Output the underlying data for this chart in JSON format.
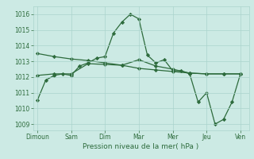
{
  "xlabel": "Pression niveau de la mer( hPa )",
  "background_color": "#cceae4",
  "grid_color": "#aad4cc",
  "line_color": "#2d6b3c",
  "ylim": [
    1008.6,
    1016.5
  ],
  "yticks": [
    1009,
    1010,
    1011,
    1012,
    1013,
    1014,
    1015,
    1016
  ],
  "xtick_labels": [
    "Dimoun",
    "Sam",
    "Dim",
    "Mar",
    "Mer",
    "Jeu",
    "Ven"
  ],
  "xtick_positions": [
    0,
    24,
    48,
    72,
    96,
    120,
    144
  ],
  "xlim": [
    -3,
    150
  ],
  "series": [
    {
      "x": [
        0,
        6,
        12,
        18,
        24,
        30,
        36,
        42,
        48,
        54,
        60,
        66,
        72,
        78,
        84,
        90,
        96,
        102,
        108,
        114,
        120,
        126,
        132,
        138,
        144
      ],
      "y": [
        1010.5,
        1011.8,
        1012.1,
        1012.2,
        1012.1,
        1012.7,
        1012.9,
        1013.2,
        1013.3,
        1014.8,
        1015.5,
        1016.0,
        1015.7,
        1013.4,
        1012.9,
        1013.1,
        1012.4,
        1012.4,
        1012.2,
        1010.4,
        1011.0,
        1009.0,
        1009.3,
        1010.4,
        1012.2
      ]
    },
    {
      "x": [
        0,
        12,
        24,
        36,
        48,
        60,
        72,
        84,
        96,
        108,
        120,
        132,
        144
      ],
      "y": [
        1013.5,
        1013.3,
        1013.15,
        1013.05,
        1012.9,
        1012.75,
        1012.55,
        1012.45,
        1012.35,
        1012.25,
        1012.2,
        1012.2,
        1012.2
      ]
    },
    {
      "x": [
        0,
        12,
        24,
        36,
        48,
        60,
        72,
        84,
        96,
        108,
        120,
        132,
        144
      ],
      "y": [
        1012.1,
        1012.2,
        1012.2,
        1012.85,
        1012.8,
        1012.75,
        1013.1,
        1012.7,
        1012.5,
        1012.25,
        1012.2,
        1012.2,
        1012.2
      ]
    }
  ]
}
